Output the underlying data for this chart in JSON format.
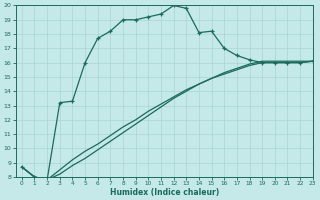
{
  "xlabel": "Humidex (Indice chaleur)",
  "background_color": "#c5e8e8",
  "grid_color": "#aad4d4",
  "line_color": "#1a6b5a",
  "xlim": [
    -0.5,
    23
  ],
  "ylim": [
    8,
    20
  ],
  "xticks": [
    0,
    1,
    2,
    3,
    4,
    5,
    6,
    7,
    8,
    9,
    10,
    11,
    12,
    13,
    14,
    15,
    16,
    17,
    18,
    19,
    20,
    21,
    22,
    23
  ],
  "yticks": [
    8,
    9,
    10,
    11,
    12,
    13,
    14,
    15,
    16,
    17,
    18,
    19,
    20
  ],
  "line1_x": [
    0,
    1,
    2,
    3,
    4,
    5,
    6,
    7,
    8,
    9,
    10,
    11,
    12,
    13,
    14,
    15,
    16,
    17,
    18,
    19,
    20,
    21,
    22,
    23
  ],
  "line1_y": [
    8.7,
    8.0,
    7.8,
    13.2,
    13.3,
    16.0,
    17.7,
    18.2,
    19.0,
    19.0,
    19.2,
    19.4,
    20.0,
    19.8,
    18.1,
    18.2,
    17.0,
    16.5,
    16.2,
    16.0,
    16.0,
    16.0,
    16.0,
    16.1
  ],
  "line2_x": [
    0,
    1,
    2,
    3,
    4,
    5,
    6,
    7,
    8,
    9,
    10,
    11,
    12,
    13,
    14,
    15,
    16,
    17,
    18,
    19,
    20,
    21,
    22,
    23
  ],
  "line2_y": [
    8.7,
    8.0,
    7.8,
    8.5,
    9.2,
    9.8,
    10.3,
    10.9,
    11.5,
    12.0,
    12.6,
    13.1,
    13.6,
    14.1,
    14.5,
    14.9,
    15.2,
    15.5,
    15.8,
    16.0,
    16.0,
    16.0,
    16.0,
    16.1
  ],
  "line3_x": [
    0,
    1,
    2,
    3,
    4,
    5,
    6,
    7,
    8,
    9,
    10,
    11,
    12,
    13,
    14,
    15,
    16,
    17,
    18,
    19,
    20,
    21,
    22,
    23
  ],
  "line3_y": [
    8.7,
    8.0,
    7.8,
    8.2,
    8.8,
    9.3,
    9.9,
    10.5,
    11.1,
    11.7,
    12.3,
    12.9,
    13.5,
    14.0,
    14.5,
    14.9,
    15.3,
    15.6,
    15.9,
    16.1,
    16.1,
    16.1,
    16.1,
    16.1
  ]
}
